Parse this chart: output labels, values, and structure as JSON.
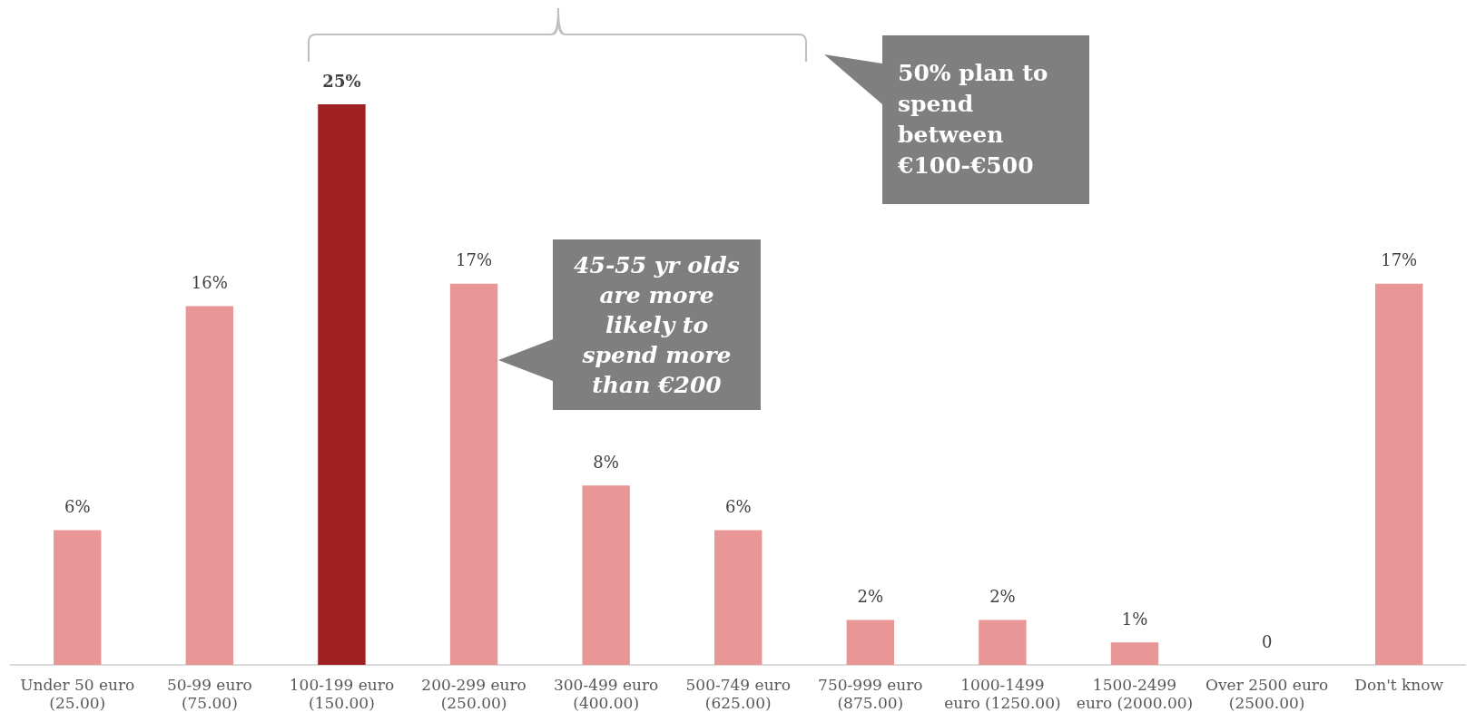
{
  "chart_data": {
    "type": "bar",
    "categories": [
      "Under 50 euro (25.00)",
      "50-99 euro (75.00)",
      "100-199 euro (150.00)",
      "200-299 euro (250.00)",
      "300-499 euro (400.00)",
      "500-749 euro (625.00)",
      "750-999 euro (875.00)",
      "1000-1499 euro (1250.00)",
      "1500-2499 euro (2000.00)",
      "Over 2500 euro (2500.00)",
      "Don't know"
    ],
    "values": [
      6,
      16,
      25,
      17,
      8,
      6,
      2,
      2,
      1,
      0,
      17
    ],
    "colors": [
      "#e99696",
      "#e99696",
      "#a01f20",
      "#e99696",
      "#e99696",
      "#e99696",
      "#e99696",
      "#e99696",
      "#e99696",
      "#e99696",
      "#e99696"
    ],
    "value_labels": [
      "6%",
      "16%",
      "25%",
      "17%",
      "8%",
      "6%",
      "2%",
      "2%",
      "1%",
      "0",
      "17%"
    ],
    "annotations": [
      "50% plan to spend between €100-€500",
      "45-55 yr olds are more likely to spend more than €200"
    ]
  }
}
